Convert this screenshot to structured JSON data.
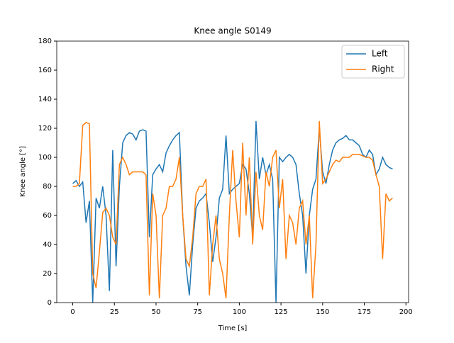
{
  "chart_data": {
    "type": "line",
    "title": "Knee angle S0149",
    "x_label": "Time [s]",
    "y_label": "Knee angle [°]",
    "x": [
      0,
      2,
      4,
      6,
      8,
      10,
      12,
      14,
      16,
      18,
      20,
      22,
      24,
      26,
      28,
      30,
      32,
      34,
      36,
      38,
      40,
      42,
      44,
      46,
      48,
      50,
      52,
      54,
      56,
      58,
      60,
      62,
      64,
      66,
      68,
      70,
      72,
      74,
      76,
      78,
      80,
      82,
      84,
      86,
      88,
      90,
      92,
      94,
      96,
      98,
      100,
      102,
      104,
      106,
      108,
      110,
      112,
      114,
      116,
      118,
      120,
      122,
      124,
      126,
      128,
      130,
      132,
      134,
      136,
      138,
      140,
      142,
      144,
      146,
      148,
      150,
      152,
      154,
      156,
      158,
      160,
      162,
      164,
      166,
      168,
      170,
      172,
      174,
      176,
      178,
      180,
      182,
      184,
      186,
      188,
      190,
      192
    ],
    "series": [
      {
        "name": "Left",
        "color": "#1f77b4",
        "values": [
          82,
          84,
          80,
          83,
          55,
          70,
          0,
          72,
          65,
          80,
          60,
          8,
          105,
          25,
          80,
          110,
          115,
          117,
          116,
          112,
          118,
          119,
          118,
          45,
          88,
          92,
          95,
          90,
          103,
          108,
          112,
          115,
          117,
          60,
          25,
          5,
          40,
          65,
          70,
          72,
          75,
          55,
          28,
          45,
          72,
          78,
          115,
          75,
          78,
          80,
          82,
          95,
          92,
          75,
          45,
          125,
          85,
          100,
          88,
          95,
          85,
          0,
          100,
          97,
          100,
          102,
          100,
          95,
          75,
          60,
          20,
          60,
          78,
          85,
          120,
          90,
          82,
          95,
          105,
          110,
          112,
          113,
          115,
          112,
          112,
          110,
          108,
          102,
          100,
          105,
          102,
          88,
          92,
          100,
          95,
          93,
          92
        ]
      },
      {
        "name": "Right",
        "color": "#ff7f0e",
        "values": [
          80,
          80,
          82,
          122,
          124,
          123,
          20,
          10,
          35,
          62,
          65,
          60,
          45,
          40,
          95,
          100,
          95,
          88,
          90,
          90,
          90,
          90,
          88,
          5,
          75,
          60,
          3,
          60,
          65,
          80,
          80,
          85,
          100,
          60,
          30,
          25,
          45,
          75,
          80,
          80,
          85,
          5,
          40,
          60,
          30,
          20,
          3,
          60,
          105,
          70,
          45,
          110,
          60,
          100,
          40,
          90,
          60,
          50,
          90,
          80,
          100,
          105,
          65,
          85,
          30,
          60,
          55,
          40,
          65,
          70,
          40,
          60,
          3,
          40,
          125,
          82,
          85,
          90,
          95,
          98,
          97,
          100,
          100,
          100,
          102,
          102,
          102,
          101,
          100,
          100,
          98,
          88,
          80,
          30,
          75,
          70,
          72
        ]
      }
    ],
    "xlim": [
      -9.6,
      201.6
    ],
    "ylim": [
      0,
      180
    ],
    "xticks": [
      0,
      25,
      50,
      75,
      100,
      125,
      150,
      175,
      200
    ],
    "yticks": [
      0,
      20,
      40,
      60,
      80,
      100,
      120,
      140,
      160,
      180
    ],
    "legend": "upper right"
  }
}
